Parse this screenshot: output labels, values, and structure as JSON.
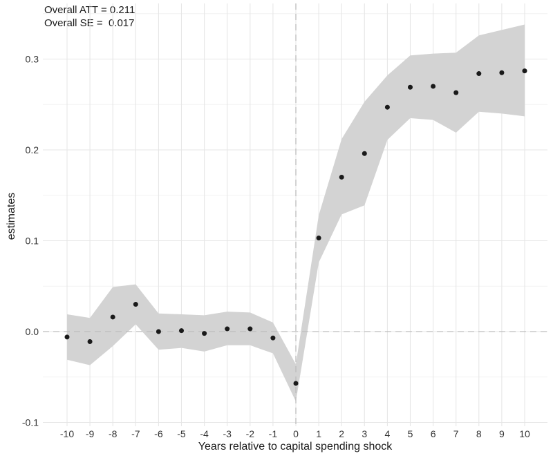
{
  "chart_data": {
    "type": "scatter",
    "subtype": "event-study with confidence ribbon",
    "annotations": [
      "Overall ATT = 0.211",
      "Overall SE =  0.017"
    ],
    "xlabel": "Years relative to capital spending shock",
    "ylabel": "estimates",
    "xlim": [
      -10.5,
      10.5
    ],
    "ylim": [
      -0.1,
      0.34
    ],
    "x_ticks": [
      -10,
      -9,
      -8,
      -7,
      -6,
      -5,
      -4,
      -3,
      -2,
      -1,
      0,
      1,
      2,
      3,
      4,
      5,
      6,
      7,
      8,
      9,
      10
    ],
    "x_tick_labels": [
      "-10",
      "-9",
      "-8",
      "-7",
      "-6",
      "-5",
      "-4",
      "-3",
      "-2",
      "-1",
      "0",
      "1",
      "2",
      "3",
      "4",
      "5",
      "6",
      "7",
      "8",
      "9",
      "10"
    ],
    "y_ticks": [
      -0.1,
      0.0,
      0.1,
      0.2,
      0.3
    ],
    "y_tick_labels": [
      "-0.1",
      "0.0",
      "0.1",
      "0.2",
      "0.3"
    ],
    "reference_lines": {
      "x": 0,
      "y": 0
    },
    "grid": true,
    "series": [
      {
        "name": "estimates",
        "x": [
          -10,
          -9,
          -8,
          -7,
          -6,
          -5,
          -4,
          -3,
          -2,
          -1,
          0,
          1,
          2,
          3,
          4,
          5,
          6,
          7,
          8,
          9,
          10
        ],
        "values": [
          -0.006,
          -0.011,
          0.016,
          0.03,
          0.0,
          0.001,
          -0.002,
          0.003,
          0.003,
          -0.007,
          -0.057,
          0.103,
          0.17,
          0.196,
          0.247,
          0.269,
          0.27,
          0.263,
          0.284,
          0.285,
          0.287
        ],
        "lower": [
          -0.031,
          -0.037,
          -0.016,
          0.008,
          -0.02,
          -0.018,
          -0.022,
          -0.015,
          -0.015,
          -0.024,
          -0.077,
          0.076,
          0.129,
          0.139,
          0.211,
          0.235,
          0.233,
          0.219,
          0.242,
          0.24,
          0.237
        ],
        "upper": [
          0.019,
          0.015,
          0.049,
          0.052,
          0.02,
          0.019,
          0.018,
          0.022,
          0.021,
          0.01,
          -0.036,
          0.128,
          0.212,
          0.253,
          0.282,
          0.304,
          0.306,
          0.307,
          0.326,
          0.332,
          0.338
        ]
      }
    ]
  },
  "colors": {
    "ribbon": "#d3d3d3",
    "point": "#1a1a1a",
    "grid_major": "#e6e6e6",
    "grid_minor": "#f2f2f2",
    "reference": "#bdbdbd",
    "text": "#1a1a1a"
  }
}
